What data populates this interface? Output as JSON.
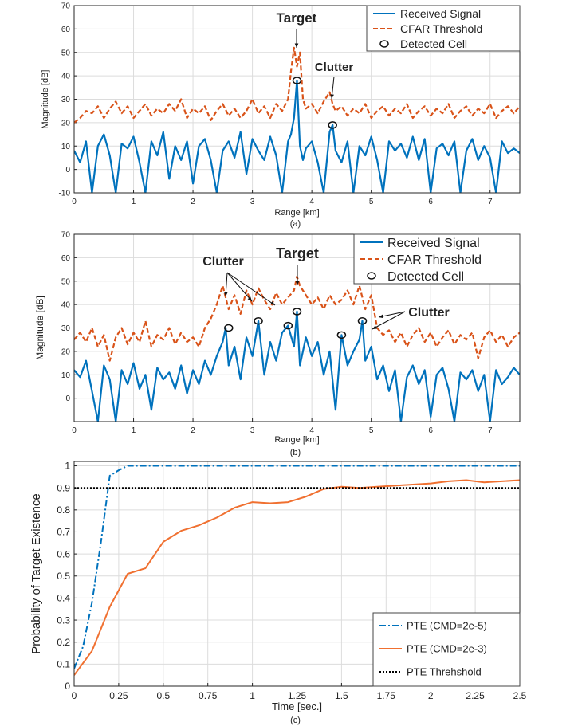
{
  "chart_data": [
    {
      "type": "line",
      "caption": "(a)",
      "xlabel": "Range [km]",
      "ylabel": "Magnitude [dB]",
      "xlim": [
        0,
        7.5
      ],
      "ylim": [
        -10,
        70
      ],
      "xticks": [
        0,
        1,
        2,
        3,
        4,
        5,
        6,
        7
      ],
      "yticks": [
        -10,
        0,
        10,
        20,
        30,
        40,
        50,
        60,
        70
      ],
      "grid": true,
      "legend_position": "top-right",
      "series": [
        {
          "name": "Received Signal",
          "color": "#0072BD",
          "style": "solid",
          "x": [
            0,
            0.1,
            0.2,
            0.3,
            0.4,
            0.5,
            0.6,
            0.7,
            0.8,
            0.9,
            1.0,
            1.1,
            1.2,
            1.3,
            1.4,
            1.5,
            1.6,
            1.7,
            1.8,
            1.9,
            2.0,
            2.1,
            2.2,
            2.3,
            2.4,
            2.5,
            2.6,
            2.7,
            2.8,
            2.9,
            3.0,
            3.1,
            3.2,
            3.3,
            3.4,
            3.5,
            3.6,
            3.65,
            3.7,
            3.75,
            3.8,
            3.85,
            3.9,
            4.0,
            4.1,
            4.2,
            4.3,
            4.35,
            4.4,
            4.5,
            4.6,
            4.7,
            4.8,
            4.9,
            5.0,
            5.1,
            5.2,
            5.3,
            5.4,
            5.5,
            5.6,
            5.7,
            5.8,
            5.9,
            6.0,
            6.1,
            6.2,
            6.3,
            6.4,
            6.5,
            6.6,
            6.7,
            6.8,
            6.9,
            7.0,
            7.1,
            7.2,
            7.3,
            7.4,
            7.5
          ],
          "y": [
            8,
            3,
            12,
            -10,
            10,
            15,
            6,
            -10,
            11,
            9,
            14,
            3,
            -10,
            12,
            6,
            16,
            -4,
            10,
            4,
            12,
            -6,
            10,
            13,
            4,
            -10,
            8,
            12,
            5,
            16,
            -2,
            13,
            8,
            4,
            14,
            6,
            -10,
            12,
            15,
            22,
            38,
            10,
            4,
            9,
            12,
            3,
            -10,
            16,
            19,
            8,
            3,
            12,
            -10,
            10,
            6,
            14,
            4,
            -10,
            12,
            8,
            11,
            5,
            14,
            4,
            13,
            -10,
            9,
            11,
            6,
            12,
            -10,
            8,
            13,
            4,
            10,
            5,
            -10,
            12,
            7,
            9,
            7
          ]
        },
        {
          "name": "CFAR Threshold",
          "color": "#D95319",
          "style": "dashed",
          "x": [
            0,
            0.1,
            0.2,
            0.3,
            0.4,
            0.5,
            0.6,
            0.7,
            0.8,
            0.9,
            1.0,
            1.1,
            1.2,
            1.3,
            1.4,
            1.5,
            1.6,
            1.7,
            1.8,
            1.9,
            2.0,
            2.1,
            2.2,
            2.3,
            2.4,
            2.5,
            2.6,
            2.7,
            2.8,
            2.9,
            3.0,
            3.1,
            3.2,
            3.3,
            3.4,
            3.5,
            3.6,
            3.65,
            3.7,
            3.75,
            3.8,
            3.85,
            3.9,
            4.0,
            4.1,
            4.2,
            4.3,
            4.35,
            4.4,
            4.5,
            4.6,
            4.7,
            4.8,
            4.9,
            5.0,
            5.1,
            5.2,
            5.3,
            5.4,
            5.5,
            5.6,
            5.7,
            5.8,
            5.9,
            6.0,
            6.1,
            6.2,
            6.3,
            6.4,
            6.5,
            6.6,
            6.7,
            6.8,
            6.9,
            7.0,
            7.1,
            7.2,
            7.3,
            7.4,
            7.5
          ],
          "y": [
            20,
            22,
            25,
            24,
            27,
            22,
            26,
            29,
            24,
            27,
            22,
            25,
            28,
            23,
            26,
            24,
            28,
            25,
            30,
            22,
            26,
            24,
            27,
            21,
            25,
            28,
            23,
            26,
            22,
            25,
            30,
            24,
            27,
            22,
            28,
            25,
            30,
            42,
            52,
            44,
            50,
            30,
            26,
            28,
            24,
            29,
            33,
            28,
            25,
            27,
            23,
            26,
            24,
            28,
            22,
            25,
            27,
            23,
            26,
            24,
            28,
            22,
            25,
            27,
            23,
            26,
            24,
            28,
            22,
            25,
            27,
            23,
            26,
            24,
            28,
            22,
            25,
            27,
            24,
            27
          ]
        }
      ],
      "detected_cells": [
        {
          "x": 3.75,
          "y": 38,
          "label": "Target"
        },
        {
          "x": 4.35,
          "y": 19,
          "label": "Clutter"
        }
      ],
      "legend_entries": [
        "Received Signal",
        "CFAR Threshold",
        "Detected Cell"
      ],
      "annotations": [
        {
          "text": "Target"
        },
        {
          "text": "Clutter"
        }
      ]
    },
    {
      "type": "line",
      "caption": "(b)",
      "xlabel": "Range [km]",
      "ylabel": "Magnitude [dB]",
      "xlim": [
        0,
        7.5
      ],
      "ylim": [
        -10,
        70
      ],
      "xticks": [
        0,
        1,
        2,
        3,
        4,
        5,
        6,
        7
      ],
      "yticks": [
        0,
        10,
        20,
        30,
        40,
        50,
        60,
        70
      ],
      "grid": true,
      "legend_position": "top-right",
      "series": [
        {
          "name": "Received Signal",
          "color": "#0072BD",
          "style": "solid",
          "x": [
            0,
            0.1,
            0.2,
            0.3,
            0.4,
            0.5,
            0.6,
            0.7,
            0.8,
            0.9,
            1.0,
            1.1,
            1.2,
            1.3,
            1.4,
            1.5,
            1.6,
            1.7,
            1.8,
            1.9,
            2.0,
            2.1,
            2.2,
            2.3,
            2.4,
            2.5,
            2.55,
            2.6,
            2.7,
            2.8,
            2.9,
            3.0,
            3.1,
            3.2,
            3.3,
            3.4,
            3.5,
            3.6,
            3.7,
            3.75,
            3.8,
            3.9,
            4.0,
            4.1,
            4.2,
            4.3,
            4.4,
            4.5,
            4.6,
            4.7,
            4.8,
            4.85,
            4.9,
            5.0,
            5.1,
            5.2,
            5.3,
            5.4,
            5.5,
            5.6,
            5.7,
            5.8,
            5.9,
            6.0,
            6.1,
            6.2,
            6.3,
            6.4,
            6.5,
            6.6,
            6.7,
            6.8,
            6.9,
            7.0,
            7.1,
            7.2,
            7.3,
            7.4,
            7.5
          ],
          "y": [
            12,
            9,
            16,
            3,
            -10,
            14,
            8,
            -10,
            12,
            6,
            15,
            4,
            10,
            -5,
            13,
            8,
            11,
            4,
            14,
            2,
            12,
            6,
            16,
            10,
            18,
            24,
            30,
            14,
            22,
            8,
            26,
            18,
            33,
            10,
            24,
            16,
            28,
            31,
            22,
            37,
            14,
            26,
            18,
            24,
            10,
            20,
            -5,
            27,
            14,
            20,
            25,
            33,
            16,
            22,
            8,
            14,
            3,
            12,
            -10,
            9,
            14,
            6,
            12,
            -8,
            10,
            13,
            4,
            -10,
            11,
            8,
            12,
            3,
            10,
            -10,
            12,
            6,
            9,
            13,
            10
          ]
        },
        {
          "name": "CFAR Threshold",
          "color": "#D95319",
          "style": "dashed",
          "x": [
            0,
            0.1,
            0.2,
            0.3,
            0.4,
            0.5,
            0.6,
            0.7,
            0.8,
            0.9,
            1.0,
            1.1,
            1.2,
            1.3,
            1.4,
            1.5,
            1.6,
            1.7,
            1.8,
            1.9,
            2.0,
            2.1,
            2.2,
            2.3,
            2.4,
            2.5,
            2.6,
            2.7,
            2.8,
            2.9,
            3.0,
            3.1,
            3.2,
            3.3,
            3.4,
            3.5,
            3.6,
            3.7,
            3.75,
            3.8,
            3.9,
            4.0,
            4.1,
            4.2,
            4.3,
            4.4,
            4.5,
            4.6,
            4.7,
            4.8,
            4.9,
            5.0,
            5.1,
            5.2,
            5.3,
            5.4,
            5.5,
            5.6,
            5.7,
            5.8,
            5.9,
            6.0,
            6.1,
            6.2,
            6.3,
            6.4,
            6.5,
            6.6,
            6.7,
            6.8,
            6.9,
            7.0,
            7.1,
            7.2,
            7.3,
            7.4,
            7.5
          ],
          "y": [
            25,
            28,
            24,
            30,
            22,
            27,
            16,
            26,
            30,
            23,
            28,
            24,
            33,
            22,
            27,
            25,
            30,
            23,
            28,
            24,
            26,
            22,
            30,
            34,
            40,
            48,
            38,
            44,
            36,
            46,
            40,
            47,
            42,
            38,
            45,
            40,
            43,
            46,
            52,
            48,
            44,
            40,
            43,
            38,
            44,
            40,
            42,
            46,
            40,
            48,
            38,
            44,
            30,
            27,
            29,
            24,
            28,
            22,
            27,
            30,
            24,
            28,
            22,
            26,
            29,
            23,
            27,
            25,
            28,
            17,
            26,
            29,
            24,
            27,
            22,
            26,
            28
          ]
        }
      ],
      "detected_cells": [
        {
          "x": 2.6,
          "y": 30
        },
        {
          "x": 3.1,
          "y": 33
        },
        {
          "x": 3.6,
          "y": 31
        },
        {
          "x": 3.75,
          "y": 37
        },
        {
          "x": 4.5,
          "y": 27
        },
        {
          "x": 4.85,
          "y": 33
        }
      ],
      "legend_entries": [
        "Received Signal",
        "CFAR Threshold",
        "Detected Cell"
      ],
      "annotations": [
        {
          "text": "Clutter"
        },
        {
          "text": "Target"
        },
        {
          "text": "Clutter"
        }
      ]
    },
    {
      "type": "line",
      "caption": "(c)",
      "xlabel": "Time [sec.]",
      "ylabel": "Probability of Target Existence",
      "xlim": [
        0,
        2.5
      ],
      "ylim": [
        0,
        1.02
      ],
      "xticks": [
        0,
        0.25,
        0.5,
        0.75,
        1,
        1.25,
        1.5,
        1.75,
        2,
        2.25,
        2.5
      ],
      "xtick_labels": [
        "0",
        "0.25",
        "0.5",
        "0.75",
        "1",
        "1.25",
        "1.5",
        "1.75",
        "2",
        "2.25",
        "2.5"
      ],
      "yticks": [
        0,
        0.1,
        0.2,
        0.3,
        0.4,
        0.5,
        0.6,
        0.7,
        0.8,
        0.9,
        1
      ],
      "ytick_labels": [
        "0",
        "0.1",
        "0.2",
        "0.3",
        "0.4",
        "0.5",
        "0.6",
        "0.7",
        "0.8",
        "0.9",
        "1"
      ],
      "grid": true,
      "legend_position": "bottom-right",
      "series": [
        {
          "name": "PTE (CMD=2e-5)",
          "color": "#0072BD",
          "style": "dashdot",
          "x": [
            0,
            0.05,
            0.1,
            0.15,
            0.2,
            0.25,
            0.3,
            0.4,
            0.5,
            0.75,
            1.0,
            1.25,
            1.5,
            1.75,
            2.0,
            2.25,
            2.5
          ],
          "y": [
            0.08,
            0.18,
            0.38,
            0.65,
            0.955,
            0.98,
            1.0,
            1.0,
            1.0,
            1.0,
            1.0,
            1.0,
            1.0,
            1.0,
            1.0,
            1.0,
            1.0
          ]
        },
        {
          "name": "PTE (CMD=2e-3)",
          "color": "#F07030",
          "style": "solid",
          "x": [
            0,
            0.1,
            0.2,
            0.3,
            0.4,
            0.5,
            0.6,
            0.7,
            0.8,
            0.9,
            1.0,
            1.1,
            1.2,
            1.3,
            1.4,
            1.5,
            1.6,
            1.7,
            1.8,
            1.9,
            2.0,
            2.1,
            2.2,
            2.3,
            2.4,
            2.5
          ],
          "y": [
            0.05,
            0.16,
            0.36,
            0.51,
            0.535,
            0.655,
            0.705,
            0.73,
            0.765,
            0.81,
            0.835,
            0.83,
            0.835,
            0.86,
            0.895,
            0.905,
            0.9,
            0.905,
            0.91,
            0.915,
            0.92,
            0.93,
            0.935,
            0.925,
            0.93,
            0.935
          ]
        },
        {
          "name": "PTE Threhshold",
          "color": "#000000",
          "style": "dotted",
          "x": [
            0,
            2.5
          ],
          "y": [
            0.9,
            0.9
          ]
        }
      ]
    }
  ]
}
